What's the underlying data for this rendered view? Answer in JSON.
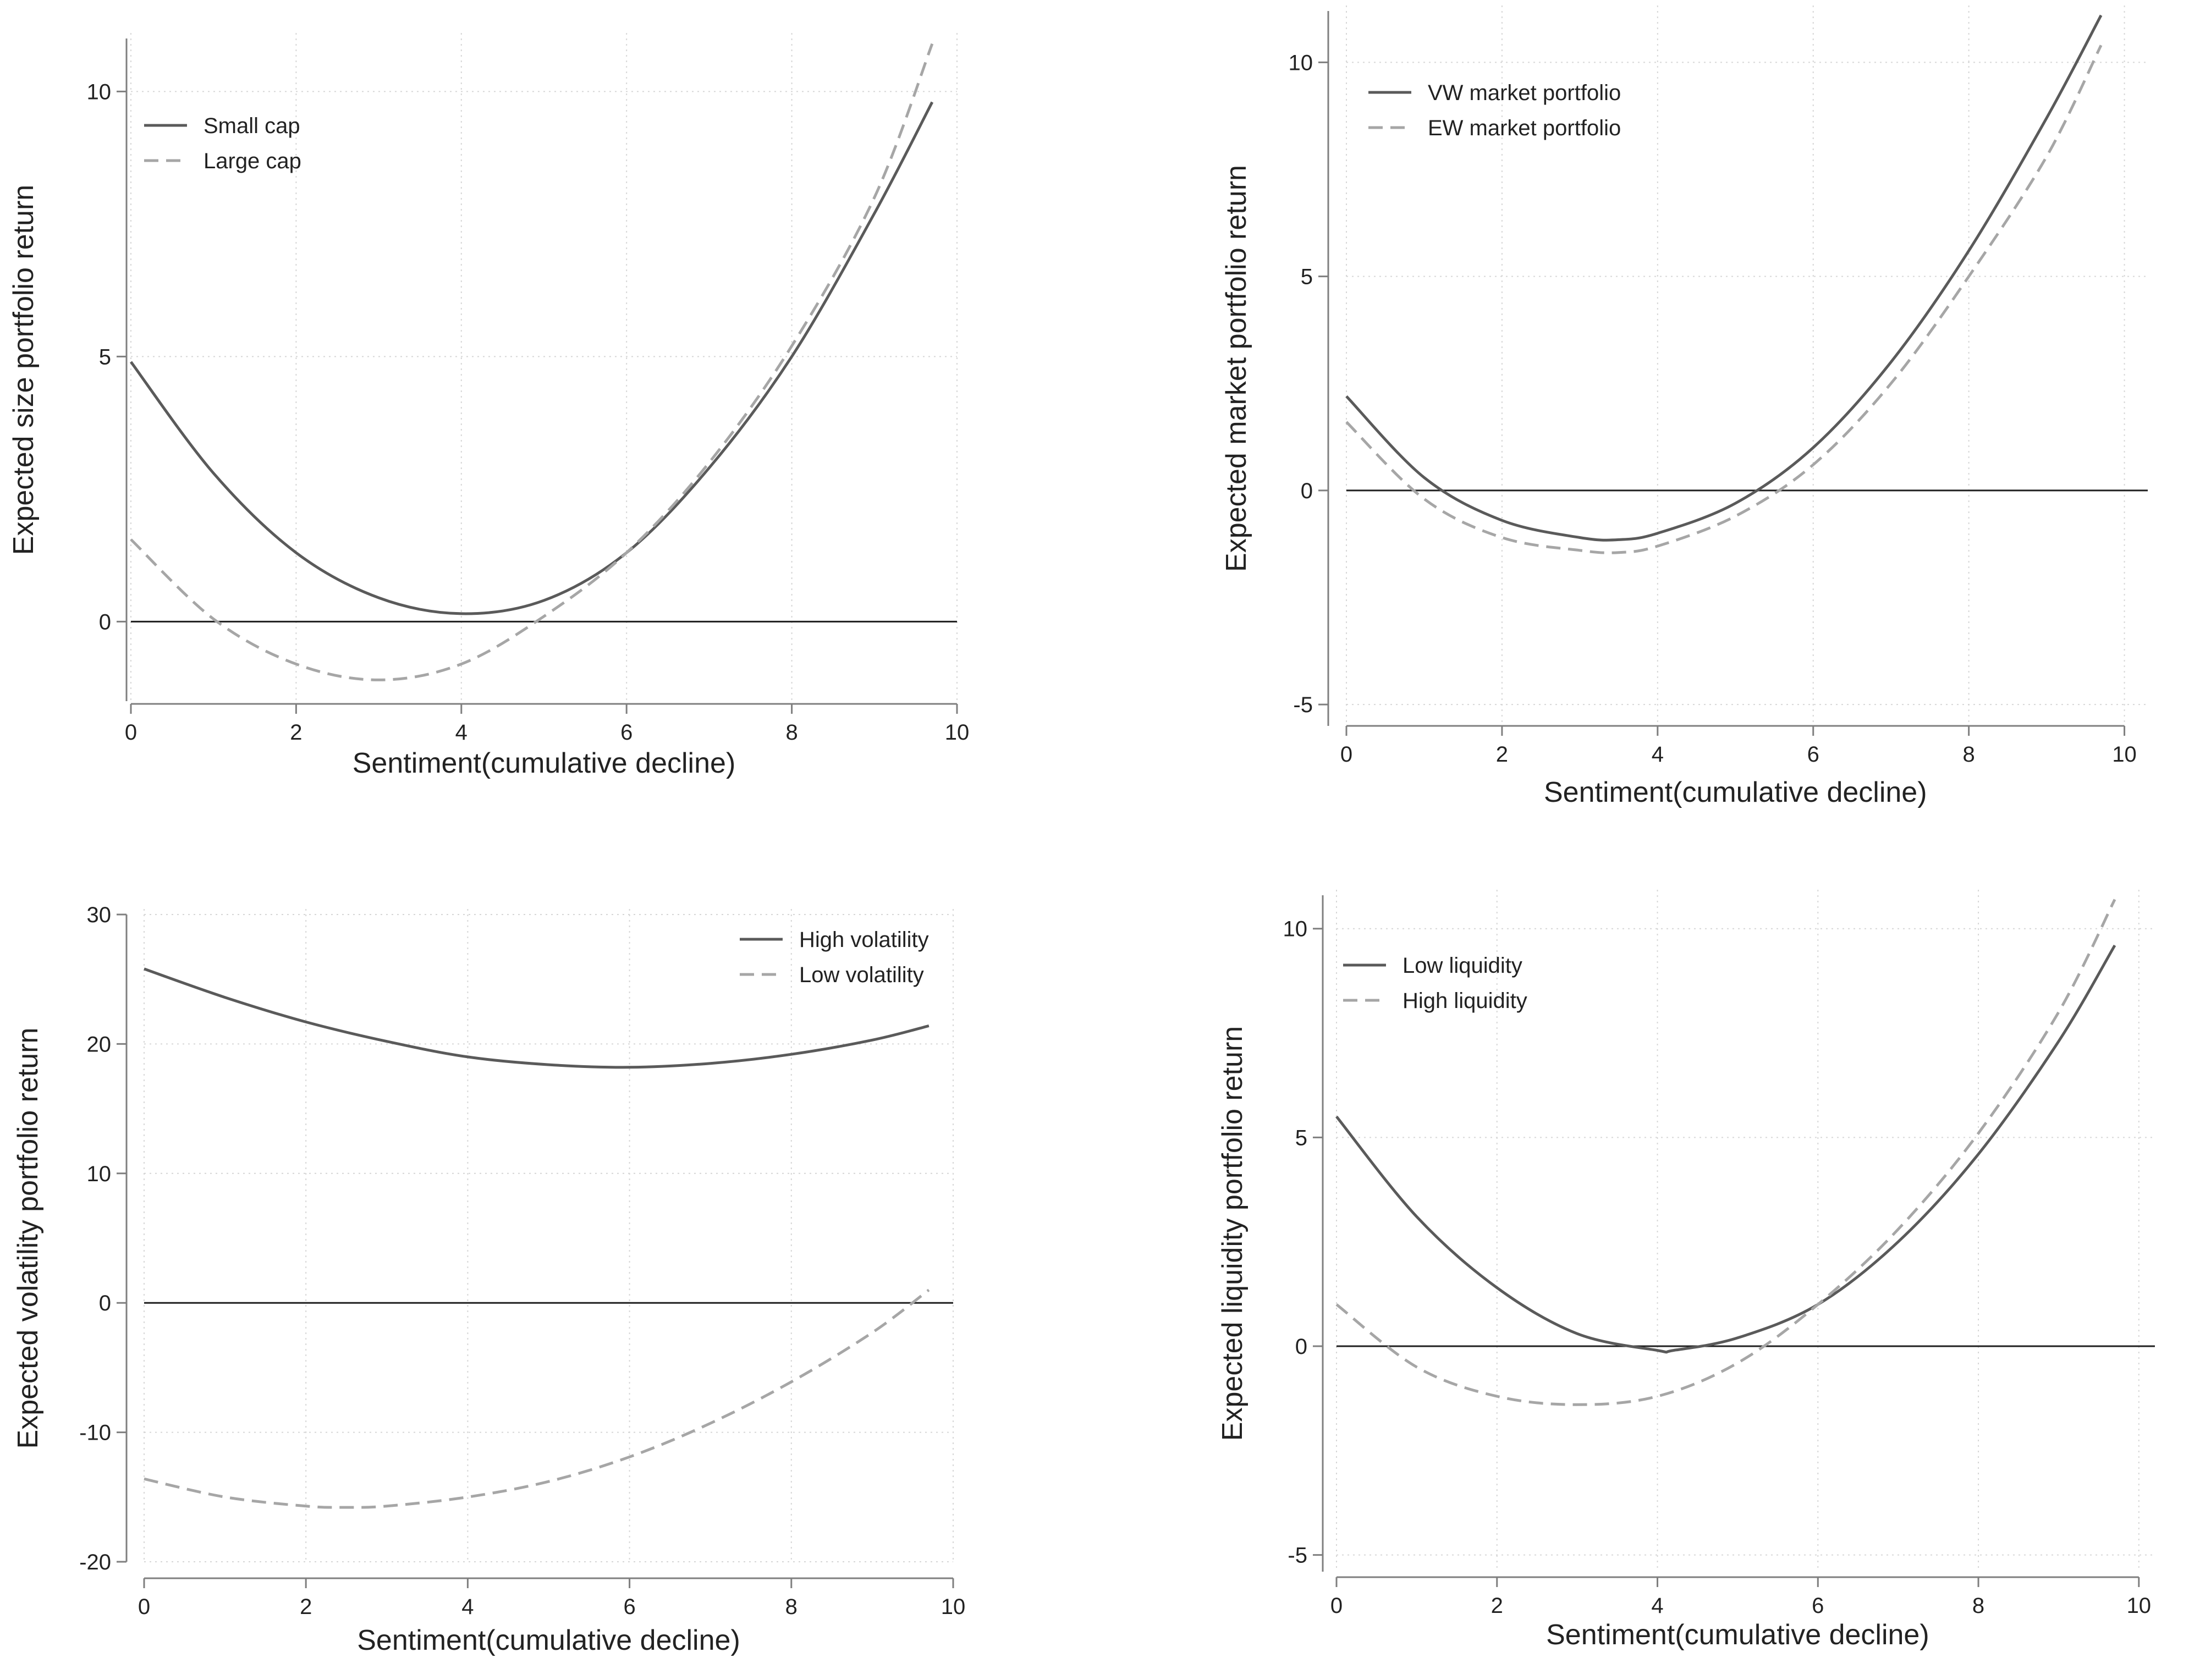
{
  "colors": {
    "solid_series": "#5a5a5a",
    "dashed_series": "#a6a6a6",
    "zero_line": "#1f1f1f",
    "axis": "#7f7f7f",
    "grid": "#d6d6d6",
    "text": "#222222"
  },
  "chart_data": [
    {
      "type": "line",
      "id": "size",
      "xlabel": "Sentiment(cumulative decline)",
      "ylabel": "Expected size portfolio return",
      "xlim": [
        0,
        10
      ],
      "ylim": [
        -1.5,
        11
      ],
      "xticks": [
        0,
        2,
        4,
        6,
        8,
        10
      ],
      "yticks": [
        0,
        5,
        10
      ],
      "xtick_labels": [
        "0",
        "2",
        "4",
        "6",
        "8",
        "10"
      ],
      "ytick_labels": [
        "0",
        "5",
        "10"
      ],
      "reference_line": 0,
      "legend_position": "top-left",
      "series": [
        {
          "name": "Small cap",
          "style": "solid",
          "x": [
            0,
            1,
            2,
            3,
            4,
            5,
            6,
            7,
            8,
            9,
            9.7
          ],
          "y": [
            4.9,
            2.8,
            1.3,
            0.45,
            0.15,
            0.4,
            1.3,
            2.9,
            5.0,
            7.7,
            9.8
          ]
        },
        {
          "name": "Large cap",
          "style": "dashed",
          "x": [
            0,
            1,
            2,
            3,
            4,
            5,
            6,
            7,
            8,
            9,
            9.7
          ],
          "y": [
            1.55,
            0.05,
            -0.8,
            -1.1,
            -0.8,
            0.1,
            1.3,
            3.0,
            5.2,
            8.0,
            10.9
          ]
        }
      ]
    },
    {
      "type": "line",
      "id": "market",
      "xlabel": "Sentiment(cumulative decline)",
      "ylabel": "Expected market portfolio return",
      "xlim": [
        0,
        10.3
      ],
      "ylim": [
        -5.5,
        11.2
      ],
      "xticks": [
        0,
        2,
        4,
        6,
        8,
        10
      ],
      "yticks": [
        -5,
        0,
        5,
        10
      ],
      "xtick_labels": [
        "0",
        "2",
        "4",
        "6",
        "8",
        "10"
      ],
      "ytick_labels": [
        "-5",
        "0",
        "5",
        "10"
      ],
      "reference_line": 0,
      "legend_position": "top-left",
      "series": [
        {
          "name": "VW market portfolio",
          "style": "solid",
          "x": [
            0,
            1,
            2,
            3,
            3.5,
            4,
            5,
            6,
            7,
            8,
            9,
            9.7
          ],
          "y": [
            2.2,
            0.3,
            -0.7,
            -1.1,
            -1.15,
            -1.0,
            -0.3,
            1.0,
            3.0,
            5.6,
            8.7,
            11.1
          ]
        },
        {
          "name": "EW market portfolio",
          "style": "dashed",
          "x": [
            0,
            1,
            2,
            3,
            3.5,
            4,
            5,
            6,
            7,
            8,
            9,
            9.7
          ],
          "y": [
            1.6,
            -0.2,
            -1.1,
            -1.4,
            -1.45,
            -1.3,
            -0.6,
            0.6,
            2.5,
            5.0,
            7.8,
            10.4
          ]
        }
      ]
    },
    {
      "type": "line",
      "id": "volatility",
      "xlabel": "Sentiment(cumulative decline)",
      "ylabel": "Expected volatility portfolio return",
      "xlim": [
        0,
        10
      ],
      "ylim": [
        -20,
        30
      ],
      "xticks": [
        0,
        2,
        4,
        6,
        8,
        10
      ],
      "yticks": [
        -20,
        -10,
        0,
        10,
        20,
        30
      ],
      "xtick_labels": [
        "0",
        "2",
        "4",
        "6",
        "8",
        "10"
      ],
      "ytick_labels": [
        "-20",
        "-10",
        "0",
        "10",
        "20",
        "30"
      ],
      "reference_line": 0,
      "legend_position": "top-right",
      "series": [
        {
          "name": "High volatility",
          "style": "solid",
          "x": [
            0,
            1,
            2,
            3,
            4,
            5,
            6,
            7,
            8,
            9,
            9.7
          ],
          "y": [
            25.8,
            23.6,
            21.7,
            20.2,
            19.0,
            18.4,
            18.2,
            18.5,
            19.2,
            20.3,
            21.4
          ]
        },
        {
          "name": "Low volatility",
          "style": "dashed",
          "x": [
            0,
            1,
            2,
            2.5,
            3,
            4,
            5,
            6,
            7,
            8,
            9,
            9.7
          ],
          "y": [
            -13.6,
            -15.0,
            -15.7,
            -15.8,
            -15.7,
            -15.0,
            -13.8,
            -11.9,
            -9.3,
            -6.1,
            -2.3,
            1.0
          ]
        }
      ]
    },
    {
      "type": "line",
      "id": "liquidity",
      "xlabel": "Sentiment(cumulative decline)",
      "ylabel": "Expected liquidity portfolio return",
      "xlim": [
        0,
        10.2
      ],
      "ylim": [
        -5.4,
        10.8
      ],
      "xticks": [
        0,
        2,
        4,
        6,
        8,
        10
      ],
      "yticks": [
        -5,
        0,
        5,
        10
      ],
      "xtick_labels": [
        "0",
        "2",
        "4",
        "6",
        "8",
        "10"
      ],
      "ytick_labels": [
        "-5",
        "0",
        "5",
        "10"
      ],
      "reference_line": 0,
      "legend_position": "top-left",
      "series": [
        {
          "name": "Low liquidity",
          "style": "solid",
          "x": [
            0,
            1,
            2,
            3,
            4,
            4.2,
            5,
            6,
            7,
            8,
            9,
            9.7
          ],
          "y": [
            5.5,
            3.1,
            1.4,
            0.3,
            -0.1,
            -0.1,
            0.2,
            1.0,
            2.5,
            4.6,
            7.3,
            9.6
          ]
        },
        {
          "name": "High liquidity",
          "style": "dashed",
          "x": [
            0,
            1,
            2,
            3,
            4,
            5,
            6,
            7,
            8,
            9,
            9.7
          ],
          "y": [
            1.0,
            -0.5,
            -1.2,
            -1.4,
            -1.2,
            -0.4,
            1.0,
            2.8,
            5.1,
            8.0,
            10.7
          ]
        }
      ]
    }
  ]
}
